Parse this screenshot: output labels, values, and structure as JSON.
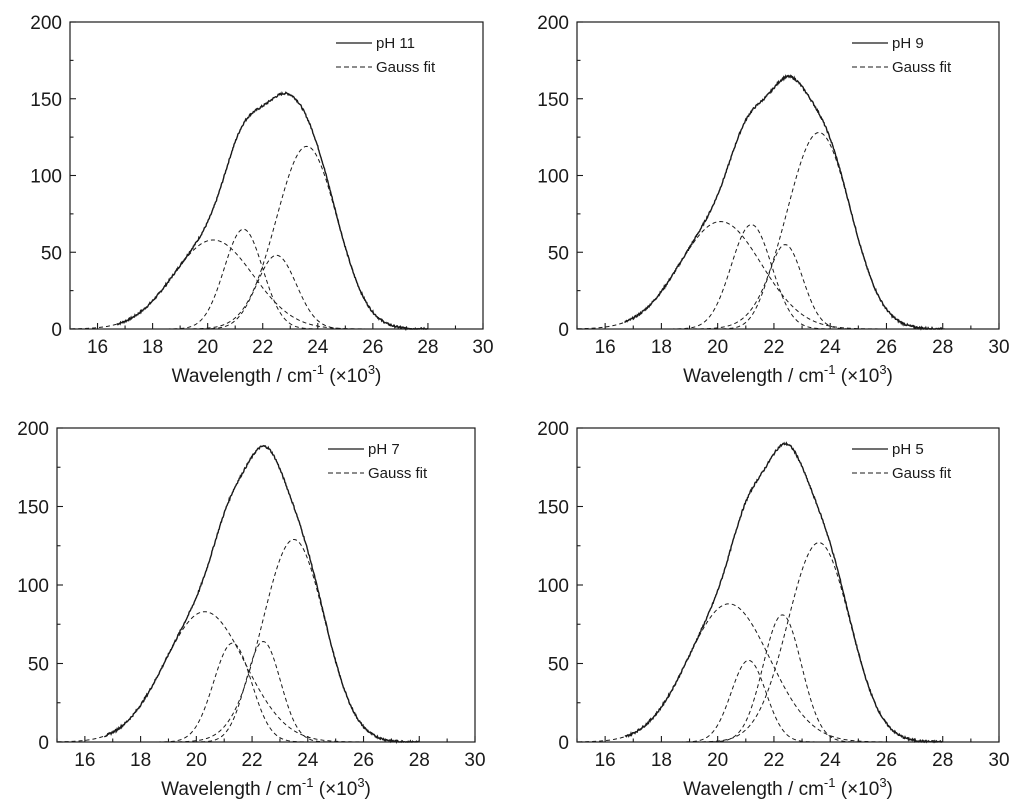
{
  "chart_data": [
    {
      "type": "line",
      "xlabel": "Wavelength / cm-1 (×103)",
      "xlabel_parts": {
        "main": "Wavelength / cm",
        "sup1": "-1",
        "mid": " (×10",
        "sup2": "3",
        "end": ")"
      },
      "xlim": [
        15,
        30
      ],
      "ylim": [
        0,
        200
      ],
      "xticks": [
        16,
        18,
        20,
        22,
        24,
        26,
        28,
        30
      ],
      "yticks": [
        0,
        50,
        100,
        150,
        200
      ],
      "legend_position": "top-right",
      "series": [
        {
          "name": "pH 11",
          "style": "solid",
          "kind": "measured",
          "components": [
            {
              "amplitude": 58,
              "center": 20.2,
              "width": 1.45
            },
            {
              "amplitude": 65,
              "center": 21.3,
              "width": 0.7
            },
            {
              "amplitude": 48,
              "center": 22.5,
              "width": 0.72
            },
            {
              "amplitude": 119,
              "center": 23.6,
              "width": 1.1
            }
          ],
          "x_range": [
            16.7,
            28.0
          ]
        },
        {
          "name": "Gauss fit",
          "style": "dashed",
          "kind": "fit"
        }
      ]
    },
    {
      "type": "line",
      "xlabel": "Wavelength / cm-1 (×103)",
      "xlabel_parts": {
        "main": "Wavelength / cm",
        "sup1": "-1",
        "mid": " (×10",
        "sup2": "3",
        "end": ")"
      },
      "xlim": [
        15,
        30
      ],
      "ylim": [
        0,
        200
      ],
      "xticks": [
        16,
        18,
        20,
        22,
        24,
        26,
        28,
        30
      ],
      "yticks": [
        0,
        50,
        100,
        150,
        200
      ],
      "legend_position": "top-right",
      "series": [
        {
          "name": "pH 9",
          "style": "solid",
          "kind": "measured",
          "components": [
            {
              "amplitude": 70,
              "center": 20.1,
              "width": 1.45
            },
            {
              "amplitude": 68,
              "center": 21.2,
              "width": 0.72
            },
            {
              "amplitude": 55,
              "center": 22.4,
              "width": 0.62
            },
            {
              "amplitude": 128,
              "center": 23.6,
              "width": 1.12
            }
          ],
          "x_range": [
            16.7,
            28.0
          ]
        },
        {
          "name": "Gauss fit",
          "style": "dashed",
          "kind": "fit"
        }
      ]
    },
    {
      "type": "line",
      "xlabel": "Wavelength / cm-1 (×103)",
      "xlabel_parts": {
        "main": "Wavelength / cm",
        "sup1": "-1",
        "mid": " (×10",
        "sup2": "3",
        "end": ")"
      },
      "xlim": [
        15,
        30
      ],
      "ylim": [
        0,
        200
      ],
      "xticks": [
        16,
        18,
        20,
        22,
        24,
        26,
        28,
        30
      ],
      "yticks": [
        0,
        50,
        100,
        150,
        200
      ],
      "legend_position": "top-right",
      "series": [
        {
          "name": "pH 7",
          "style": "solid",
          "kind": "measured",
          "components": [
            {
              "amplitude": 83,
              "center": 20.3,
              "width": 1.45
            },
            {
              "amplitude": 63,
              "center": 21.3,
              "width": 0.68
            },
            {
              "amplitude": 64,
              "center": 22.4,
              "width": 0.62
            },
            {
              "amplitude": 129,
              "center": 23.5,
              "width": 1.1
            }
          ],
          "x_range": [
            16.7,
            28.0
          ]
        },
        {
          "name": "Gauss fit",
          "style": "dashed",
          "kind": "fit"
        }
      ]
    },
    {
      "type": "line",
      "xlabel": "Wavelength / cm-1 (×103)",
      "xlabel_parts": {
        "main": "Wavelength / cm",
        "sup1": "-1",
        "mid": " (×10",
        "sup2": "3",
        "end": ")"
      },
      "xlim": [
        15,
        30
      ],
      "ylim": [
        0,
        200
      ],
      "xticks": [
        16,
        18,
        20,
        22,
        24,
        26,
        28,
        30
      ],
      "yticks": [
        0,
        50,
        100,
        150,
        200
      ],
      "legend_position": "top-right",
      "series": [
        {
          "name": "pH 5",
          "style": "solid",
          "kind": "measured",
          "components": [
            {
              "amplitude": 88,
              "center": 20.4,
              "width": 1.45
            },
            {
              "amplitude": 52,
              "center": 21.1,
              "width": 0.62
            },
            {
              "amplitude": 81,
              "center": 22.3,
              "width": 0.68
            },
            {
              "amplitude": 127,
              "center": 23.6,
              "width": 1.1
            }
          ],
          "x_range": [
            16.7,
            28.0
          ]
        },
        {
          "name": "Gauss fit",
          "style": "dashed",
          "kind": "fit"
        }
      ]
    }
  ]
}
